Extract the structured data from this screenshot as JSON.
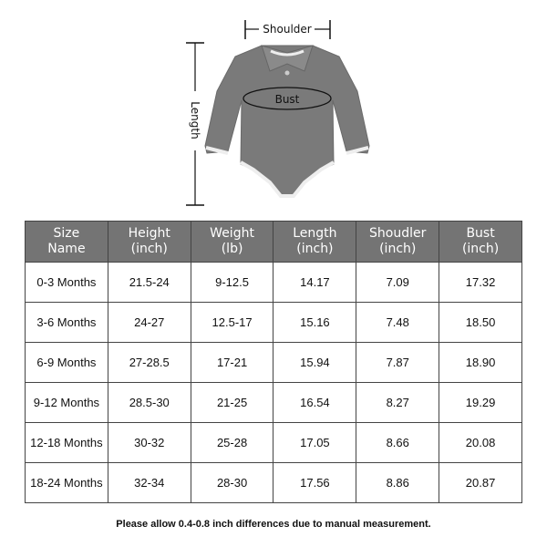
{
  "diagram": {
    "shoulder_label": "Shoulder",
    "bust_label": "Bust",
    "length_label": "Length",
    "garment_color": "#7a7a7a"
  },
  "table": {
    "headers": [
      [
        "Size",
        "Name"
      ],
      [
        "Height",
        "(inch)"
      ],
      [
        "Weight",
        "(lb)"
      ],
      [
        "Length",
        "(inch)"
      ],
      [
        "Shoudler",
        "(inch)"
      ],
      [
        "Bust",
        "(inch)"
      ]
    ],
    "rows": [
      [
        "0-3 Months",
        "21.5-24",
        "9-12.5",
        "14.17",
        "7.09",
        "17.32"
      ],
      [
        "3-6 Months",
        "24-27",
        "12.5-17",
        "15.16",
        "7.48",
        "18.50"
      ],
      [
        "6-9 Months",
        "27-28.5",
        "17-21",
        "15.94",
        "7.87",
        "18.90"
      ],
      [
        "9-12 Months",
        "28.5-30",
        "21-25",
        "16.54",
        "8.27",
        "19.29"
      ],
      [
        "12-18 Months",
        "30-32",
        "25-28",
        "17.05",
        "8.66",
        "20.08"
      ],
      [
        "18-24 Months",
        "32-34",
        "28-30",
        "17.56",
        "8.86",
        "20.87"
      ]
    ],
    "header_bg": "#747474"
  },
  "footer_note": "Please allow 0.4-0.8 inch differences due to manual measurement."
}
